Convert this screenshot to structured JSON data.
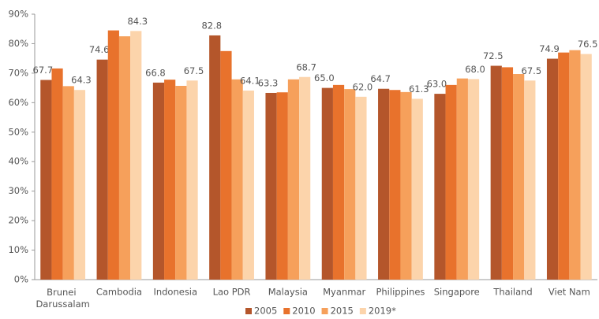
{
  "chart_data": {
    "type": "bar",
    "categories": [
      "Brunei Darussalam",
      "Cambodia",
      "Indonesia",
      "Lao PDR",
      "Malaysia",
      "Myanmar",
      "Philippines",
      "Singapore",
      "Thailand",
      "Viet Nam"
    ],
    "series": [
      {
        "name": "2005",
        "color": "#b4562b",
        "values": [
          67.7,
          74.6,
          66.8,
          82.8,
          63.3,
          65.0,
          64.7,
          63.0,
          72.5,
          74.9
        ],
        "value_labels": [
          "67.7",
          "74.6",
          "66.8",
          "82.8",
          "63.3",
          "65.0",
          "64.7",
          "63.0",
          "72.5",
          "74.9"
        ]
      },
      {
        "name": "2010",
        "color": "#e8722c",
        "values": [
          71.6,
          84.5,
          67.8,
          77.5,
          63.5,
          66.0,
          64.3,
          66.0,
          72.0,
          77.0
        ]
      },
      {
        "name": "2015",
        "color": "#f6a05b",
        "values": [
          65.6,
          82.5,
          65.7,
          67.9,
          67.9,
          64.6,
          63.6,
          68.2,
          69.7,
          77.8
        ]
      },
      {
        "name": "2019*",
        "color": "#fcd4ab",
        "values": [
          64.3,
          84.3,
          67.5,
          64.1,
          68.7,
          62.0,
          61.3,
          68.0,
          67.5,
          76.5
        ],
        "value_labels": [
          "64.3",
          "84.3",
          "67.5",
          "64.1",
          "68.7",
          "62.0",
          "61.3",
          "68.0",
          "67.5",
          "76.5"
        ]
      }
    ],
    "ylim": [
      0,
      90
    ],
    "yticks": [
      {
        "value": 0,
        "label": "0%"
      },
      {
        "value": 10,
        "label": "10%"
      },
      {
        "value": 20,
        "label": "20%"
      },
      {
        "value": 30,
        "label": "30%"
      },
      {
        "value": 40,
        "label": "40%"
      },
      {
        "value": 50,
        "label": "50%"
      },
      {
        "value": 60,
        "label": "60%"
      },
      {
        "value": 70,
        "label": "70%"
      },
      {
        "value": 80,
        "label": "80%"
      },
      {
        "value": 90,
        "label": "90%"
      }
    ],
    "grid": false,
    "legend": "bottom"
  }
}
